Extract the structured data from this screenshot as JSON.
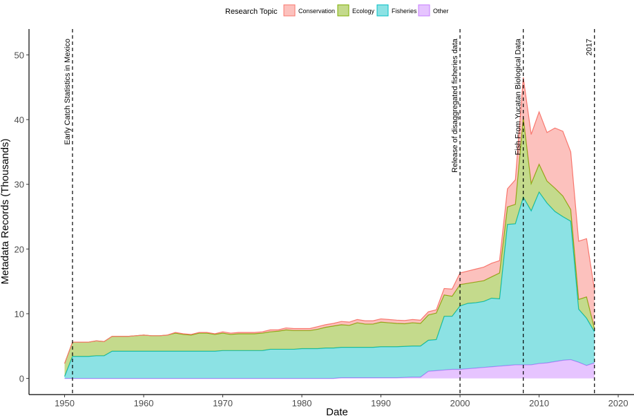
{
  "chart_data": {
    "type": "area",
    "stacked": true,
    "xlabel": "Date",
    "ylabel": "Metadata Records (Thousands)",
    "xlim": [
      1945.5,
      2022
    ],
    "ylim": [
      -2.5,
      54
    ],
    "x_ticks": [
      1950,
      1960,
      1970,
      1980,
      1990,
      2000,
      2010,
      2020
    ],
    "y_ticks": [
      0,
      10,
      20,
      30,
      40,
      50
    ],
    "grid": false,
    "legend": {
      "title": "Research Topic",
      "position": "top",
      "entries": [
        "Conservation",
        "Ecology",
        "Fisheries",
        "Other"
      ]
    },
    "x": [
      1950,
      1951,
      1952,
      1953,
      1954,
      1955,
      1956,
      1957,
      1958,
      1959,
      1960,
      1961,
      1962,
      1963,
      1964,
      1965,
      1966,
      1967,
      1968,
      1969,
      1970,
      1971,
      1972,
      1973,
      1974,
      1975,
      1976,
      1977,
      1978,
      1979,
      1980,
      1981,
      1982,
      1983,
      1984,
      1985,
      1986,
      1987,
      1988,
      1989,
      1990,
      1991,
      1992,
      1993,
      1994,
      1995,
      1996,
      1997,
      1998,
      1999,
      2000,
      2001,
      2002,
      2003,
      2004,
      2005,
      2006,
      2007,
      2008,
      2009,
      2010,
      2011,
      2012,
      2013,
      2014,
      2015,
      2016,
      2017
    ],
    "series": [
      {
        "name": "Other",
        "color": "#C77CFF",
        "values": [
          0,
          0,
          0,
          0,
          0,
          0,
          0,
          0,
          0,
          0,
          0,
          0,
          0,
          0,
          0,
          0,
          0,
          0,
          0,
          0,
          0,
          0,
          0,
          0,
          0,
          0,
          0,
          0,
          0,
          0,
          0,
          0,
          0,
          0,
          0,
          0.1,
          0.1,
          0.1,
          0.1,
          0.1,
          0.1,
          0.1,
          0.1,
          0.15,
          0.2,
          0.2,
          1.1,
          1.2,
          1.3,
          1.4,
          1.4,
          1.5,
          1.6,
          1.7,
          1.8,
          1.9,
          2.0,
          2.1,
          2.1,
          2.1,
          2.3,
          2.4,
          2.6,
          2.8,
          2.9,
          2.5,
          2.0,
          2.4
        ]
      },
      {
        "name": "Fisheries",
        "color": "#00BFC4",
        "values": [
          0.3,
          3.4,
          3.4,
          3.4,
          3.5,
          3.5,
          4.2,
          4.2,
          4.2,
          4.2,
          4.2,
          4.2,
          4.2,
          4.2,
          4.2,
          4.2,
          4.2,
          4.2,
          4.2,
          4.2,
          4.3,
          4.3,
          4.3,
          4.3,
          4.3,
          4.3,
          4.5,
          4.5,
          4.5,
          4.5,
          4.6,
          4.6,
          4.6,
          4.7,
          4.7,
          4.7,
          4.7,
          4.7,
          4.7,
          4.7,
          4.8,
          4.8,
          4.8,
          4.8,
          4.8,
          4.8,
          4.8,
          4.8,
          8.3,
          8.2,
          9.8,
          10.1,
          10.1,
          10.2,
          10.6,
          10.4,
          21.8,
          21.8,
          25.9,
          23.8,
          26.5,
          24.7,
          23.2,
          22.2,
          21.4,
          8.2,
          7.3,
          4.8
        ]
      },
      {
        "name": "Ecology",
        "color": "#7CAE00",
        "values": [
          2.0,
          2.2,
          2.2,
          2.2,
          2.3,
          2.2,
          2.3,
          2.3,
          2.3,
          2.4,
          2.5,
          2.4,
          2.4,
          2.5,
          2.8,
          2.6,
          2.5,
          2.8,
          2.8,
          2.6,
          2.7,
          2.5,
          2.6,
          2.6,
          2.6,
          2.7,
          2.7,
          2.8,
          3.0,
          2.9,
          2.8,
          2.8,
          3.0,
          3.2,
          3.4,
          3.5,
          3.4,
          3.8,
          3.6,
          3.6,
          3.8,
          3.7,
          3.6,
          3.5,
          3.6,
          3.5,
          3.9,
          4.1,
          3.3,
          3.1,
          3.3,
          3.1,
          3.2,
          3.2,
          3.3,
          4.0,
          2.7,
          3.0,
          12.3,
          4.2,
          4.3,
          3.4,
          3.6,
          3.2,
          1.8,
          1.5,
          3.3,
          0.5
        ]
      },
      {
        "name": "Conservation",
        "color": "#F8766D",
        "values": [
          0,
          0,
          0,
          0,
          0,
          0,
          0,
          0,
          0,
          0,
          0,
          0,
          0,
          0,
          0.1,
          0.1,
          0.1,
          0.1,
          0.1,
          0.1,
          0.2,
          0.2,
          0.2,
          0.2,
          0.2,
          0.2,
          0.3,
          0.2,
          0.3,
          0.3,
          0.3,
          0.3,
          0.4,
          0.4,
          0.4,
          0.5,
          0.5,
          0.5,
          0.5,
          0.5,
          0.5,
          0.5,
          0.5,
          0.5,
          0.5,
          0.5,
          0.5,
          0.5,
          1.0,
          1.1,
          1.8,
          1.9,
          2.0,
          2.1,
          2.1,
          1.9,
          2.8,
          3.8,
          6.2,
          7.6,
          8.1,
          7.5,
          9.3,
          10.0,
          8.9,
          9.0,
          9.0,
          6.0
        ]
      }
    ],
    "annotations": [
      {
        "x": 1951,
        "label": "Early Catch Statistics in Mexico"
      },
      {
        "x": 2000,
        "label": "Release of disaggregated fisheries data"
      },
      {
        "x": 2008,
        "label": "Fish From Yucatan Biological Data"
      },
      {
        "x": 2017,
        "label": "2017"
      }
    ]
  }
}
